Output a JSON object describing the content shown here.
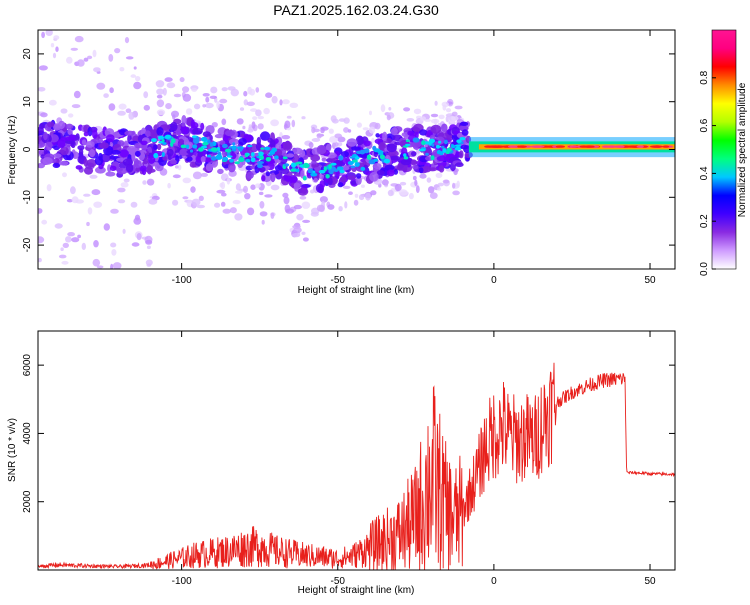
{
  "title": "PAZ1.2025.162.03.24.G30",
  "chart_data": [
    {
      "type": "heatmap",
      "xlabel": "Height of straight line (km)",
      "ylabel": "Frequency (Hz)",
      "xlim": [
        -146,
        58
      ],
      "ylim": [
        -25,
        25
      ],
      "xticks": [
        "-100",
        "-50",
        "0",
        "50"
      ],
      "yticks": [
        "20",
        "10",
        "0",
        "-10",
        "-20"
      ],
      "grid": false,
      "colorbar": {
        "label": "Normalized spectral amplitude",
        "range": [
          0,
          1
        ],
        "ticks": [
          "0.0",
          "0.2",
          "0.4",
          "0.6",
          "0.8"
        ],
        "colors": [
          "#ffffff",
          "#cf9cff",
          "#8a2be2",
          "#3f00ff",
          "#0000ff",
          "#00c8ff",
          "#00ff7f",
          "#00ff00",
          "#b4ff00",
          "#ffff00",
          "#ff8c00",
          "#ff0000",
          "#ff0080",
          "#ff1493"
        ]
      },
      "ridge": {
        "x": [
          -140,
          -130,
          -120,
          -110,
          -100,
          -90,
          -80,
          -70,
          -60,
          -50,
          -40,
          -30,
          -20,
          -10,
          -5,
          0,
          10,
          20,
          30,
          40,
          50,
          58
        ],
        "frequency": [
          1,
          0,
          -1,
          0,
          2,
          0,
          -1,
          -2,
          -5,
          -3,
          -2,
          0,
          0,
          1,
          1,
          1,
          1,
          0.5,
          0.5,
          0.5,
          0.5,
          0.5
        ]
      }
    },
    {
      "type": "line",
      "xlabel": "Height of straight line (km)",
      "ylabel": "SNR (10 * v/v)",
      "xlim": [
        -146,
        58
      ],
      "ylim": [
        0,
        7000
      ],
      "xticks": [
        "-100",
        "-50",
        "0",
        "50"
      ],
      "yticks": [
        "2000",
        "4000",
        "6000"
      ],
      "grid": false,
      "series": [
        {
          "color": "#e8201c",
          "x": [
            -146,
            -140,
            -130,
            -120,
            -115,
            -110,
            -105,
            -100,
            -95,
            -90,
            -85,
            -80,
            -75,
            -70,
            -65,
            -60,
            -55,
            -50,
            -45,
            -40,
            -35,
            -30,
            -25,
            -22,
            -20,
            -18,
            -15,
            -12,
            -10,
            -8,
            -5,
            -3,
            0,
            3,
            5,
            8,
            10,
            13,
            15,
            18,
            20,
            25,
            30,
            35,
            40,
            42,
            42.5,
            45,
            50,
            58
          ],
          "values": [
            100,
            150,
            120,
            100,
            120,
            150,
            250,
            350,
            450,
            500,
            550,
            650,
            700,
            550,
            480,
            420,
            380,
            330,
            420,
            650,
            850,
            1050,
            1500,
            2200,
            2800,
            2400,
            1700,
            1500,
            1700,
            2200,
            2900,
            3500,
            4000,
            4200,
            3900,
            3800,
            3900,
            3800,
            4200,
            4700,
            4900,
            5200,
            5400,
            5550,
            5600,
            5600,
            2850,
            2850,
            2820,
            2800
          ]
        }
      ]
    }
  ]
}
